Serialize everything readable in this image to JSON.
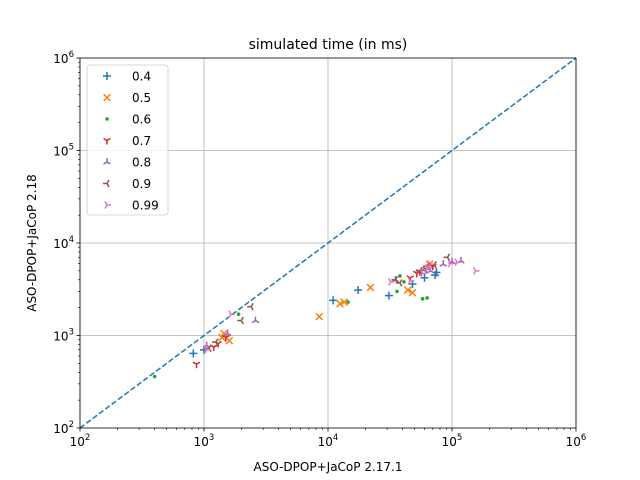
{
  "chart_data": {
    "type": "scatter",
    "title": "simulated time (in ms)",
    "xlabel": "ASO-DPOP+JaCoP 2.17.1",
    "ylabel": "ASO-DPOP+JaCoP 2.18",
    "xscale": "log",
    "yscale": "log",
    "xlim": [
      100,
      1000000
    ],
    "ylim": [
      100,
      1000000
    ],
    "grid": true,
    "legend_position": "top-left",
    "xticks": [
      {
        "value": 100,
        "base": "10",
        "exp": "2"
      },
      {
        "value": 1000,
        "base": "10",
        "exp": "3"
      },
      {
        "value": 10000,
        "base": "10",
        "exp": "4"
      },
      {
        "value": 100000,
        "base": "10",
        "exp": "5"
      },
      {
        "value": 1000000,
        "base": "10",
        "exp": "6"
      }
    ],
    "yticks": [
      {
        "value": 100,
        "base": "10",
        "exp": "2"
      },
      {
        "value": 1000,
        "base": "10",
        "exp": "3"
      },
      {
        "value": 10000,
        "base": "10",
        "exp": "4"
      },
      {
        "value": 100000,
        "base": "10",
        "exp": "5"
      },
      {
        "value": 1000000,
        "base": "10",
        "exp": "6"
      }
    ],
    "diagonal": {
      "name": "y = x",
      "color": "#1f77b4",
      "style": "dashed"
    },
    "series": [
      {
        "name": "0.4",
        "marker": "plus",
        "color": "#1f77b4",
        "x": [
          820,
          1000,
          11000,
          17500,
          31000,
          48000,
          73000,
          75000,
          60000
        ],
        "y": [
          640,
          700,
          2400,
          3100,
          2700,
          3600,
          4500,
          4800,
          4200
        ]
      },
      {
        "name": "0.5",
        "marker": "x",
        "color": "#ff7f0e",
        "x": [
          1400,
          1600,
          8500,
          12500,
          13500,
          22000,
          44000,
          48000,
          66000,
          1450
        ],
        "y": [
          950,
          880,
          1600,
          2200,
          2300,
          3300,
          3100,
          2900,
          5900,
          1050
        ]
      },
      {
        "name": "0.6",
        "marker": "point",
        "color": "#2ca02c",
        "x": [
          400,
          1900,
          14500,
          36000,
          38000,
          41000,
          58000,
          63000
        ],
        "y": [
          360,
          1700,
          2300,
          3000,
          4400,
          3800,
          2500,
          2550
        ]
      },
      {
        "name": "0.7",
        "marker": "tri_down",
        "color": "#d62728",
        "x": [
          870,
          1200,
          1300,
          1500,
          46000,
          52000,
          55000,
          62000,
          70000
        ],
        "y": [
          490,
          750,
          820,
          950,
          4200,
          4700,
          4900,
          5200,
          5600
        ]
      },
      {
        "name": "0.8",
        "marker": "tri_up",
        "color": "#9467bd",
        "x": [
          1050,
          1550,
          2600,
          35000,
          59000,
          85000,
          100000,
          118000,
          67000
        ],
        "y": [
          780,
          1050,
          1450,
          4000,
          5100,
          5900,
          6300,
          6400,
          5000
        ]
      },
      {
        "name": "0.9",
        "marker": "tri_left",
        "color": "#8c564b",
        "x": [
          1100,
          1250,
          2000,
          2400,
          35000,
          38000,
          55000,
          63000,
          92000,
          72000
        ],
        "y": [
          730,
          850,
          1450,
          2050,
          4000,
          3700,
          5000,
          5600,
          7000,
          5800
        ]
      },
      {
        "name": "0.99",
        "marker": "tri_right",
        "color": "#e377c2",
        "x": [
          1050,
          1650,
          32000,
          46000,
          64000,
          67000,
          97000,
          110000,
          155000,
          58000
        ],
        "y": [
          700,
          1700,
          3800,
          3900,
          5400,
          5900,
          6000,
          6200,
          5000,
          4700
        ]
      }
    ]
  }
}
